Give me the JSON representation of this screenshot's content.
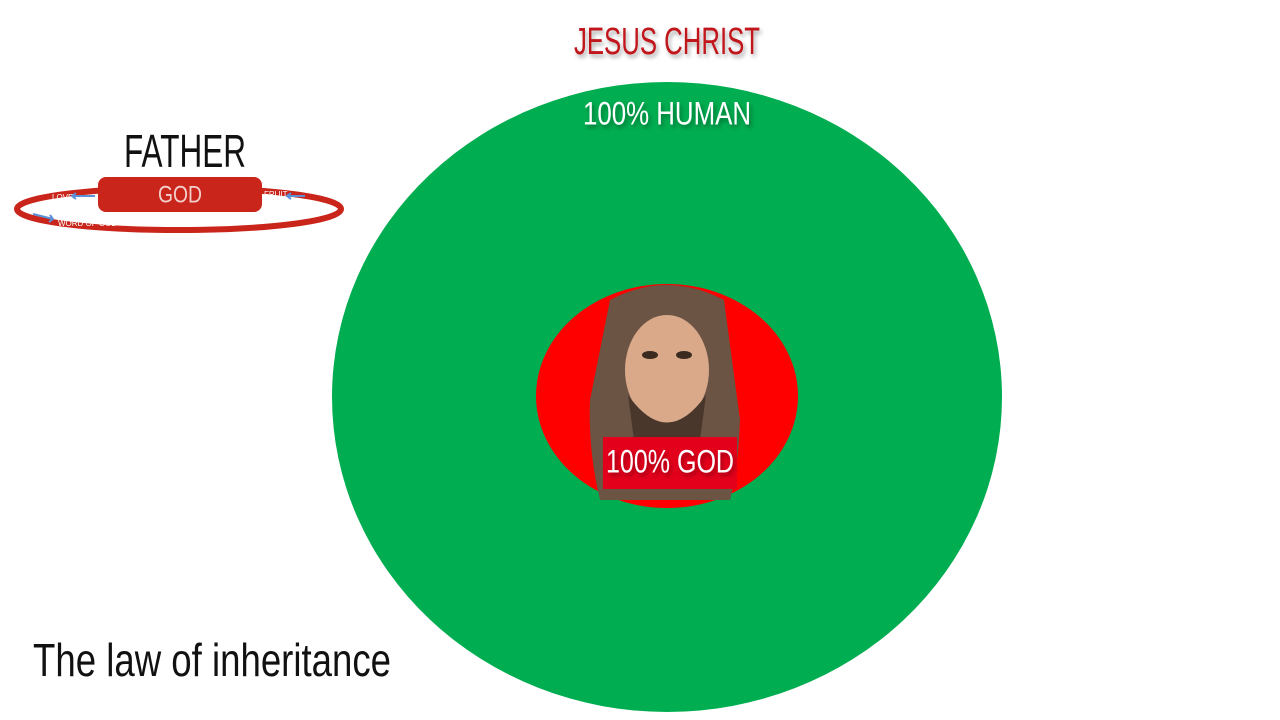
{
  "title": "JESUS CHRIST",
  "outer_circle": {
    "label": "100% HUMAN"
  },
  "inner_circle": {
    "label": "100% GOD"
  },
  "father": {
    "title": "FATHER",
    "label": "GOD",
    "cycle": {
      "left": "LOVE",
      "right": "FRUIT",
      "bottom": "WORD OF GOD"
    }
  },
  "caption": "The law of inheritance"
}
